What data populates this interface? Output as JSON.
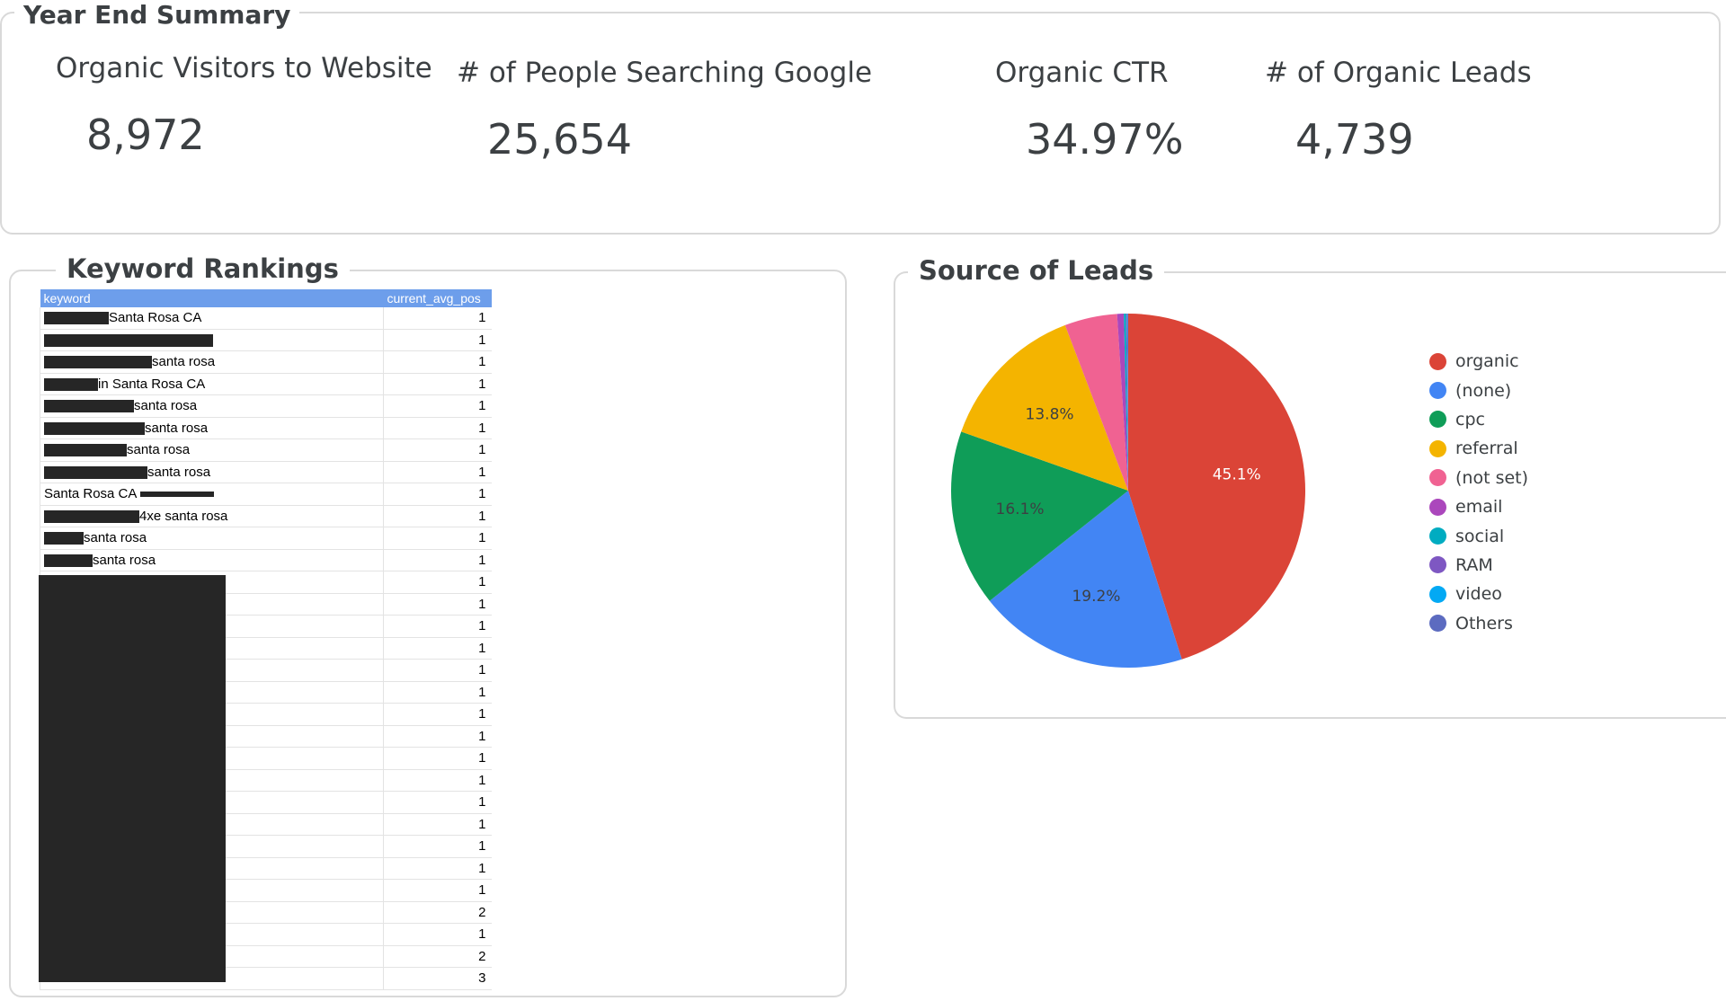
{
  "summary": {
    "title": "Year End Summary",
    "kpis": [
      {
        "label": "Organic Visitors to Website",
        "value": "8,972"
      },
      {
        "label": "# of People Searching Google",
        "value": "25,654"
      },
      {
        "label": "Organic CTR",
        "value": "34.97%"
      },
      {
        "label": "# of Organic Leads",
        "value": "4,739"
      }
    ]
  },
  "keywords": {
    "title": "Keyword Rankings",
    "columns": [
      "keyword",
      "current_avg_pos"
    ],
    "rows": [
      {
        "keyword": "Santa Rosa CA",
        "pos": "1"
      },
      {
        "keyword": "",
        "pos": "1"
      },
      {
        "keyword": "santa rosa",
        "pos": "1"
      },
      {
        "keyword": "in Santa Rosa CA",
        "pos": "1"
      },
      {
        "keyword": "santa rosa",
        "pos": "1"
      },
      {
        "keyword": "santa rosa",
        "pos": "1"
      },
      {
        "keyword": "santa rosa",
        "pos": "1"
      },
      {
        "keyword": "santa rosa",
        "pos": "1"
      },
      {
        "keyword": "Santa Rosa CA",
        "pos": "1"
      },
      {
        "keyword": "4xe santa rosa",
        "pos": "1"
      },
      {
        "keyword": "santa rosa",
        "pos": "1"
      },
      {
        "keyword": "santa rosa",
        "pos": "1"
      },
      {
        "keyword": "",
        "pos": "1"
      },
      {
        "keyword": "",
        "pos": "1"
      },
      {
        "keyword": "",
        "pos": "1"
      },
      {
        "keyword": "",
        "pos": "1"
      },
      {
        "keyword": "",
        "pos": "1"
      },
      {
        "keyword": "",
        "pos": "1"
      },
      {
        "keyword": "",
        "pos": "1"
      },
      {
        "keyword": "",
        "pos": "1"
      },
      {
        "keyword": "",
        "pos": "1"
      },
      {
        "keyword": "",
        "pos": "1"
      },
      {
        "keyword": "",
        "pos": "1"
      },
      {
        "keyword": "",
        "pos": "1"
      },
      {
        "keyword": "",
        "pos": "1"
      },
      {
        "keyword": "",
        "pos": "1"
      },
      {
        "keyword": "",
        "pos": "1"
      },
      {
        "keyword": "",
        "pos": "2"
      },
      {
        "keyword": "",
        "pos": "1"
      },
      {
        "keyword": "",
        "pos": "2"
      },
      {
        "keyword": "",
        "pos": "3"
      }
    ]
  },
  "leads": {
    "title": "Source of Leads",
    "chart_data": {
      "type": "pie",
      "slices": [
        {
          "name": "organic",
          "percent": 45.1,
          "color": "#db4437",
          "label": "45.1%"
        },
        {
          "name": "(none)",
          "percent": 19.2,
          "color": "#4285f4",
          "label": "19.2%"
        },
        {
          "name": "cpc",
          "percent": 16.1,
          "color": "#0f9d58",
          "label": "16.1%"
        },
        {
          "name": "referral",
          "percent": 13.8,
          "color": "#f4b400",
          "label": "13.8%"
        },
        {
          "name": "(not set)",
          "percent": 4.8,
          "color": "#f06292",
          "label": ""
        },
        {
          "name": "email",
          "percent": 0.6,
          "color": "#ab47bc",
          "label": ""
        },
        {
          "name": "social",
          "percent": 0.2,
          "color": "#00acc1",
          "label": ""
        },
        {
          "name": "RAM",
          "percent": 0.1,
          "color": "#7e57c2",
          "label": ""
        },
        {
          "name": "video",
          "percent": 0.05,
          "color": "#03a9f4",
          "label": ""
        },
        {
          "name": "Others",
          "percent": 0.05,
          "color": "#5c6bc0",
          "label": ""
        }
      ],
      "legend_position": "right"
    }
  }
}
